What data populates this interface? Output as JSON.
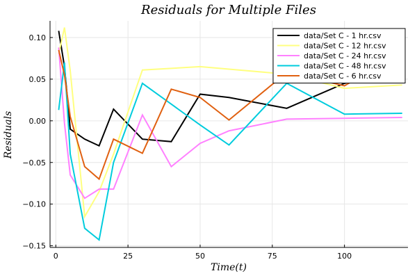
{
  "chart_data": {
    "type": "line",
    "title": "Residuals for Multiple Files",
    "xlabel": "Time(t)",
    "ylabel": "Residuals",
    "xlim": [
      -2,
      122
    ],
    "ylim": [
      -0.152,
      0.12
    ],
    "xticks": [
      0,
      25,
      50,
      75,
      100
    ],
    "yticks": [
      -0.15,
      -0.1,
      -0.05,
      0.0,
      0.05,
      0.1
    ],
    "xtick_labels": [
      "0",
      "25",
      "50",
      "75",
      "100"
    ],
    "ytick_labels": [
      "−0.15",
      "−0.10",
      "−0.05",
      "0.00",
      "0.05",
      "0.10"
    ],
    "grid": true,
    "legend_position": "top-right",
    "series": [
      {
        "name": "data/Set C - 1 hr.csv",
        "color": "#000000",
        "x": [
          1,
          3,
          5,
          10,
          15,
          20,
          30,
          40,
          50,
          60,
          80,
          100,
          120
        ],
        "y": [
          0.108,
          0.065,
          -0.01,
          -0.022,
          -0.03,
          0.014,
          -0.022,
          -0.025,
          0.032,
          0.028,
          0.015,
          0.045,
          0.063
        ]
      },
      {
        "name": "data/Set C - 12 hr.csv",
        "color": "#ffff80",
        "x": [
          1,
          3,
          5,
          10,
          15,
          20,
          30,
          40,
          50,
          60,
          80,
          100,
          120
        ],
        "y": [
          0.08,
          0.112,
          0.06,
          -0.115,
          -0.085,
          -0.04,
          0.061,
          0.063,
          0.065,
          0.062,
          0.056,
          0.039,
          0.043
        ]
      },
      {
        "name": "data/Set C - 24 hr.csv",
        "color": "#ff80ff",
        "x": [
          1,
          3,
          5,
          10,
          15,
          20,
          30,
          40,
          50,
          60,
          80,
          100,
          120
        ],
        "y": [
          0.088,
          -0.003,
          -0.065,
          -0.093,
          -0.082,
          -0.082,
          0.007,
          -0.055,
          -0.027,
          -0.012,
          0.002,
          0.003,
          0.004
        ]
      },
      {
        "name": "data/Set C - 48 hr.csv",
        "color": "#00ccdd",
        "x": [
          1,
          3,
          5,
          10,
          15,
          20,
          30,
          40,
          50,
          60,
          80,
          100,
          120
        ],
        "y": [
          0.013,
          0.07,
          -0.04,
          -0.129,
          -0.143,
          -0.05,
          0.045,
          0.02,
          -0.005,
          -0.029,
          0.045,
          0.008,
          0.009
        ]
      },
      {
        "name": "data/Set C - 6 hr.csv",
        "color": "#e06010",
        "x": [
          1,
          3,
          5,
          10,
          15,
          20,
          30,
          40,
          50,
          60,
          80,
          100,
          120
        ],
        "y": [
          0.085,
          0.055,
          0.005,
          -0.055,
          -0.07,
          -0.022,
          -0.039,
          0.038,
          0.028,
          0.001,
          0.058,
          0.042,
          0.082
        ]
      }
    ]
  }
}
